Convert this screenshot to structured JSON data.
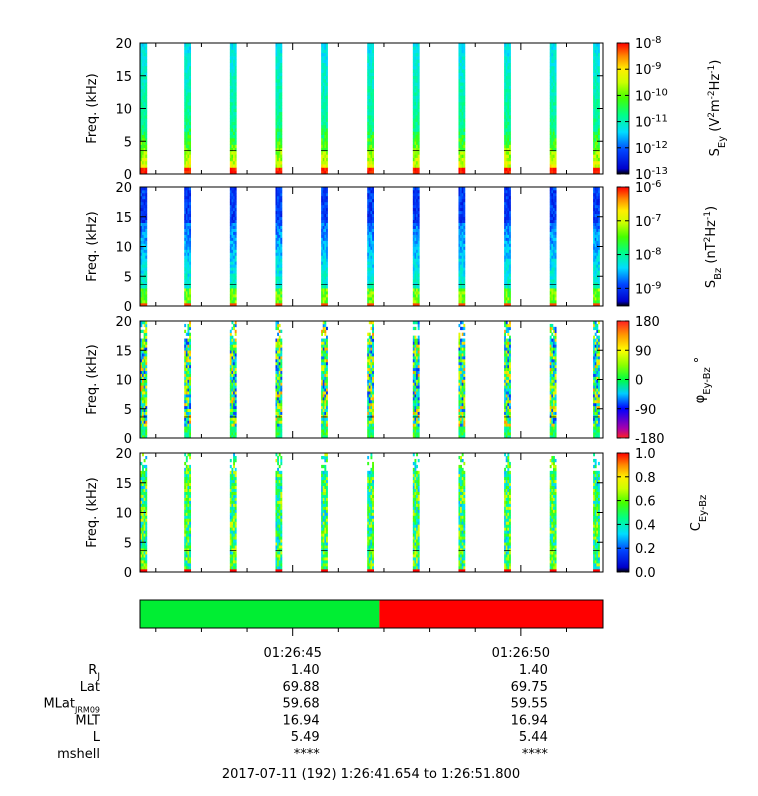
{
  "chart_data": [
    {
      "type": "heatmap",
      "panel": "sey",
      "ylabel": "Freq. (kHz)",
      "yticks": [
        "0",
        "5",
        "10",
        "15",
        "20"
      ],
      "ylim": [
        0,
        20
      ],
      "colorbar": {
        "label_html": "S<tspan baseline-shift='sub' font-size='10'>Ey</tspan> (V<tspan baseline-shift='super' font-size='9'>2</tspan>m<tspan baseline-shift='super' font-size='9'>-2</tspan>Hz<tspan baseline-shift='super' font-size='9'>-1</tspan>)",
        "scale": "log",
        "ticks": [
          {
            "base": "10",
            "exp": "-8",
            "value": 1e-08
          },
          {
            "base": "10",
            "exp": "-9",
            "value": 1e-09
          },
          {
            "base": "10",
            "exp": "-10",
            "value": 1e-10
          },
          {
            "base": "10",
            "exp": "-11",
            "value": 1e-11
          },
          {
            "base": "10",
            "exp": "-12",
            "value": 1e-12
          },
          {
            "base": "10",
            "exp": "-13",
            "value": 1e-13
          }
        ],
        "range": [
          1e-13,
          1e-08
        ]
      }
    },
    {
      "type": "heatmap",
      "panel": "sbz",
      "ylabel": "Freq. (kHz)",
      "yticks": [
        "0",
        "5",
        "10",
        "15",
        "20"
      ],
      "ylim": [
        0,
        20
      ],
      "colorbar": {
        "scale": "log",
        "ticks": [
          {
            "base": "10",
            "exp": "-6",
            "value": 1e-06
          },
          {
            "base": "10",
            "exp": "-7",
            "value": 1e-07
          },
          {
            "base": "10",
            "exp": "-8",
            "value": 1e-08
          },
          {
            "base": "10",
            "exp": "-9",
            "value": 1e-09
          }
        ],
        "range": [
          3e-10,
          1e-06
        ]
      }
    },
    {
      "type": "heatmap",
      "panel": "phase",
      "ylabel": "Freq. (kHz)",
      "yticks": [
        "0",
        "5",
        "10",
        "15",
        "20"
      ],
      "ylim": [
        0,
        20
      ],
      "colorbar": {
        "scale": "linear",
        "ticks": [
          "180",
          "90",
          "0",
          "-90",
          "-180"
        ],
        "range": [
          -180,
          180
        ]
      }
    },
    {
      "type": "heatmap",
      "panel": "coherence",
      "ylabel": "Freq. (kHz)",
      "yticks": [
        "0",
        "5",
        "10",
        "15",
        "20"
      ],
      "ylim": [
        0,
        20
      ],
      "colorbar": {
        "scale": "linear",
        "ticks": [
          "1.0",
          "0.8",
          "0.6",
          "0.4",
          "0.2",
          "0.0"
        ],
        "range": [
          0,
          1
        ]
      }
    }
  ],
  "status_bar": {
    "segments": [
      {
        "color": "#00ee33",
        "fraction": 0.517
      },
      {
        "color": "#ff0000",
        "fraction": 0.483
      }
    ]
  },
  "time_axis": {
    "tick_labels": [
      {
        "label": "01:26:45",
        "t": 3.346
      },
      {
        "label": "01:26:50",
        "t": 8.346
      }
    ]
  },
  "ephemeris": {
    "rows": [
      {
        "label_html": "R<tspan baseline-shift='sub' font-size='9'>J</tspan>",
        "values": [
          "1.40",
          "1.40"
        ]
      },
      {
        "label_html": "Lat",
        "values": [
          "69.88",
          "69.75"
        ]
      },
      {
        "label_html": "MLat<tspan baseline-shift='sub' font-size='8'>JRM09</tspan>",
        "values": [
          "59.68",
          "59.55"
        ]
      },
      {
        "label_html": "MLT",
        "values": [
          "16.94",
          "16.94"
        ]
      },
      {
        "label_html": "L",
        "values": [
          "5.49",
          "5.44"
        ]
      },
      {
        "label_html": "mshell",
        "values": [
          "****",
          "****"
        ]
      }
    ]
  },
  "footer": "2017-07-11 (192) 1:26:41.654 to 1:26:51.800"
}
